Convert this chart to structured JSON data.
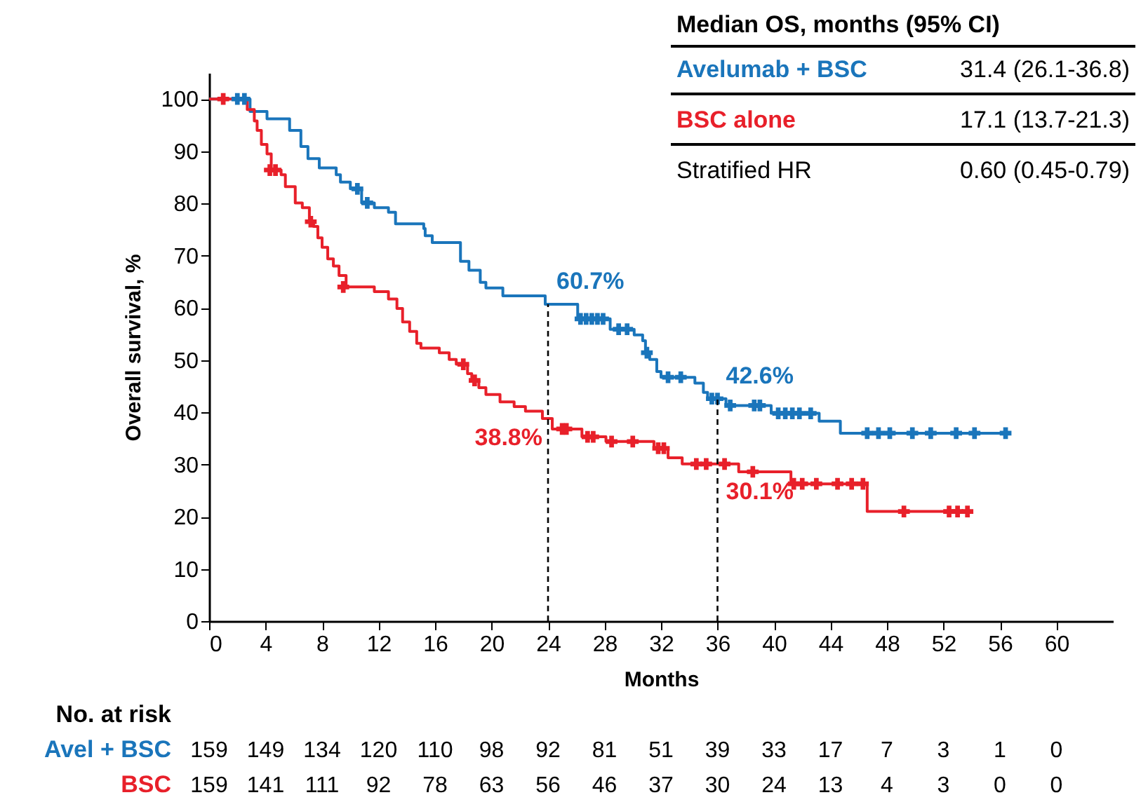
{
  "chart_data": {
    "type": "step",
    "xlabel": "Months",
    "ylabel": "Overall survival, %",
    "xlim": [
      0,
      64
    ],
    "ylim": [
      0,
      105
    ],
    "xticks": [
      0,
      4,
      8,
      12,
      16,
      20,
      24,
      28,
      32,
      36,
      40,
      44,
      48,
      52,
      56,
      60
    ],
    "yticks": [
      0,
      10,
      20,
      30,
      40,
      50,
      60,
      70,
      80,
      90,
      100
    ],
    "grid": false,
    "legend": "top right",
    "series": [
      {
        "name": "Avelumab + BSC",
        "color": "#1a75bb",
        "x": [
          0,
          2.9,
          4.1,
          5.7,
          6.5,
          7.0,
          7.8,
          9.0,
          9.3,
          10.0,
          10.8,
          11.7,
          12.7,
          13.2,
          15.2,
          15.3,
          15.8,
          17.8,
          18.4,
          19.2,
          19.6,
          20.8,
          23.8,
          26.1,
          28.4,
          30.1,
          30.7,
          30.9,
          31.2,
          31.7,
          32.0,
          34.4,
          35.0,
          35.3,
          36.6,
          39.8,
          43.2,
          44.7,
          56.4
        ],
        "values": [
          100,
          97.6,
          96.2,
          94.0,
          90.9,
          88.6,
          86.8,
          85.5,
          84.1,
          82.8,
          80.1,
          79.2,
          78.3,
          76.1,
          75.2,
          73.8,
          72.5,
          68.9,
          67.2,
          64.9,
          63.8,
          62.3,
          60.7,
          57.9,
          55.9,
          54.8,
          53.7,
          51.4,
          50.1,
          47.8,
          46.7,
          45.6,
          43.8,
          42.6,
          41.3,
          39.8,
          38.3,
          36.0,
          36.0
        ]
      },
      {
        "name": "BSC alone",
        "color": "#e8202a",
        "x": [
          0,
          2.7,
          3.2,
          3.4,
          3.7,
          4.1,
          4.4,
          5.1,
          5.4,
          6.1,
          6.6,
          7.1,
          7.4,
          7.7,
          8.0,
          8.4,
          8.8,
          9.2,
          9.7,
          11.7,
          12.7,
          13.3,
          13.7,
          14.2,
          14.7,
          15.0,
          16.3,
          17.0,
          17.5,
          18.3,
          18.6,
          19.1,
          19.6,
          20.6,
          21.6,
          22.4,
          23.6,
          24.3,
          26.4,
          28.1,
          31.5,
          32.5,
          33.5,
          37.5,
          41.2,
          46.6,
          53.7
        ],
        "values": [
          100,
          98.0,
          95.8,
          94.0,
          91.3,
          89.5,
          86.4,
          85.5,
          83.2,
          80.1,
          79.2,
          76.5,
          75.6,
          73.4,
          71.6,
          69.4,
          68.0,
          66.2,
          64.0,
          63.1,
          61.7,
          59.9,
          57.3,
          55.5,
          53.2,
          52.3,
          51.4,
          50.1,
          49.2,
          47.4,
          46.1,
          44.7,
          43.4,
          42.0,
          41.1,
          40.2,
          38.8,
          36.8,
          35.3,
          34.4,
          33.1,
          31.3,
          30.1,
          28.6,
          26.3,
          21.0,
          21.0
        ]
      },
      {
        "type": "scatter",
        "marker": "cross",
        "color": "#1a75bb",
        "x": [
          2.0,
          2.5,
          10.5,
          11.2,
          26.3,
          26.7,
          27.1,
          27.5,
          27.9,
          29.0,
          29.6,
          31.0,
          32.5,
          33.4,
          35.6,
          36.0,
          36.9,
          38.6,
          39.0,
          40.3,
          40.8,
          41.3,
          41.8,
          42.6,
          46.6,
          47.4,
          48.2,
          49.8,
          51.1,
          52.9,
          54.2,
          56.4
        ],
        "values": [
          100,
          100,
          82.8,
          80.1,
          57.9,
          57.9,
          57.9,
          57.9,
          57.9,
          55.9,
          55.9,
          51.4,
          46.7,
          46.7,
          42.6,
          42.6,
          41.3,
          41.3,
          41.3,
          39.8,
          39.8,
          39.8,
          39.8,
          39.8,
          36.0,
          36.0,
          36.0,
          36.0,
          36.0,
          36.0,
          36.0,
          36.0
        ]
      },
      {
        "type": "scatter",
        "marker": "cross",
        "color": "#e8202a",
        "x": [
          1.0,
          4.3,
          4.7,
          7.2,
          9.5,
          18.0,
          18.8,
          25.0,
          25.3,
          26.8,
          27.2,
          28.5,
          30.0,
          31.8,
          32.2,
          34.5,
          35.2,
          36.5,
          38.5,
          41.4,
          42.0,
          43.0,
          44.5,
          45.5,
          46.3,
          49.2,
          52.4,
          53.0,
          53.7
        ],
        "values": [
          100,
          86.4,
          86.4,
          76.5,
          64.0,
          49.2,
          46.1,
          36.8,
          36.8,
          35.3,
          35.3,
          34.4,
          34.4,
          33.1,
          33.1,
          30.1,
          30.1,
          30.1,
          28.6,
          26.3,
          26.3,
          26.3,
          26.3,
          26.3,
          26.3,
          21.0,
          21.0,
          21.0,
          21.0
        ]
      }
    ],
    "ref_lines": [
      {
        "axis": "x",
        "value": 24,
        "line_style": "dashed",
        "color": "#000000"
      },
      {
        "axis": "x",
        "value": 36,
        "line_style": "dashed",
        "color": "#000000"
      }
    ],
    "annotations": [
      "60.7%",
      "42.6%",
      "38.8%",
      "30.1%",
      "Median OS, months (95% CI)",
      "31.4 (26.1-36.8)",
      "17.1 (13.7-21.3)",
      "Stratified HR",
      "0.60 (0.45-0.79)",
      "No. at risk",
      "Avel + BSC",
      "159",
      "149",
      "134",
      "120",
      "110",
      "98",
      "92",
      "81",
      "51",
      "39",
      "33",
      "17",
      "7",
      "3",
      "1",
      "0",
      "BSC",
      "159",
      "141",
      "111",
      "92",
      "78",
      "63",
      "56",
      "46",
      "37",
      "30",
      "24",
      "13",
      "4",
      "3",
      "0",
      "0"
    ]
  }
}
